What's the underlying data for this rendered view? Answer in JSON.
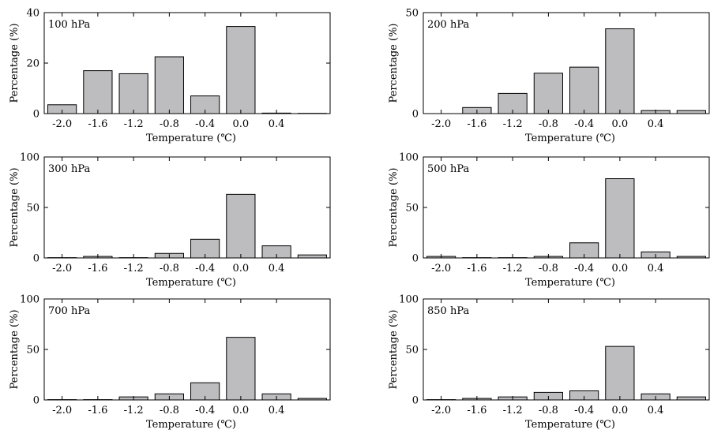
{
  "chart_data": [
    {
      "type": "bar",
      "title": "100 hPa",
      "xlabel": "Temperature (℃)",
      "ylabel": "Percentage (%)",
      "x": [
        -2.0,
        -1.6,
        -1.2,
        -0.8,
        -0.4,
        0.0,
        0.4,
        0.8
      ],
      "x_tick_labels": [
        "-2.0",
        "-1.6",
        "-1.2",
        "-0.8",
        "-0.4",
        "0.0",
        "0.4"
      ],
      "values": [
        3.5,
        17,
        15.8,
        22.5,
        7,
        34.5,
        0.2,
        0.1
      ],
      "ylim": [
        0,
        40
      ],
      "yticks": [
        0,
        20,
        40
      ]
    },
    {
      "type": "bar",
      "title": "200 hPa",
      "xlabel": "Temperature (℃)",
      "ylabel": "Percentage (%)",
      "x": [
        -2.0,
        -1.6,
        -1.2,
        -0.8,
        -0.4,
        0.0,
        0.4,
        0.8
      ],
      "x_tick_labels": [
        "-2.0",
        "-1.6",
        "-1.2",
        "-0.8",
        "-0.4",
        "0.0",
        "0.4"
      ],
      "values": [
        0,
        3,
        10,
        20,
        23,
        42,
        1.5,
        1.5
      ],
      "ylim": [
        0,
        50
      ],
      "yticks": [
        0,
        50
      ]
    },
    {
      "type": "bar",
      "title": "300 hPa",
      "xlabel": "Temperature (℃)",
      "ylabel": "Percentage (%)",
      "x": [
        -2.0,
        -1.6,
        -1.2,
        -0.8,
        -0.4,
        0.0,
        0.4,
        0.8
      ],
      "x_tick_labels": [
        "-2.0",
        "-1.6",
        "-1.2",
        "-0.8",
        "-0.4",
        "0.0",
        "0.4"
      ],
      "values": [
        0.3,
        1.5,
        0.3,
        4.5,
        18.5,
        63,
        12,
        3
      ],
      "ylim": [
        0,
        100
      ],
      "yticks": [
        0,
        50,
        100
      ]
    },
    {
      "type": "bar",
      "title": "500 hPa",
      "xlabel": "Temperature (℃)",
      "ylabel": "Percentage (%)",
      "x": [
        -2.0,
        -1.6,
        -1.2,
        -0.8,
        -0.4,
        0.0,
        0.4,
        0.8
      ],
      "x_tick_labels": [
        "-2.0",
        "-1.6",
        "-1.2",
        "-0.8",
        "-0.4",
        "0.0",
        "0.4"
      ],
      "values": [
        1.5,
        0.3,
        0.3,
        1.5,
        15,
        78.5,
        6,
        1.5
      ],
      "ylim": [
        0,
        100
      ],
      "yticks": [
        0,
        50,
        100
      ]
    },
    {
      "type": "bar",
      "title": "700 hPa",
      "xlabel": "Temperature (℃)",
      "ylabel": "Percentage (%)",
      "x": [
        -2.0,
        -1.6,
        -1.2,
        -0.8,
        -0.4,
        0.0,
        0.4,
        0.8
      ],
      "x_tick_labels": [
        "-2.0",
        "-1.6",
        "-1.2",
        "-0.8",
        "-0.4",
        "0.0",
        "0.4"
      ],
      "values": [
        0.3,
        0.3,
        3,
        6,
        17,
        62,
        6,
        1.5
      ],
      "ylim": [
        0,
        100
      ],
      "yticks": [
        0,
        50,
        100
      ]
    },
    {
      "type": "bar",
      "title": "850 hPa",
      "xlabel": "Temperature (℃)",
      "ylabel": "Percentage (%)",
      "x": [
        -2.0,
        -1.6,
        -1.2,
        -0.8,
        -0.4,
        0.0,
        0.4,
        0.8
      ],
      "x_tick_labels": [
        "-2.0",
        "-1.6",
        "-1.2",
        "-0.8",
        "-0.4",
        "0.0",
        "0.4"
      ],
      "values": [
        0.3,
        1.5,
        3,
        7.5,
        9,
        53,
        6,
        3
      ],
      "ylim": [
        0,
        100
      ],
      "yticks": [
        0,
        50,
        100
      ]
    }
  ]
}
